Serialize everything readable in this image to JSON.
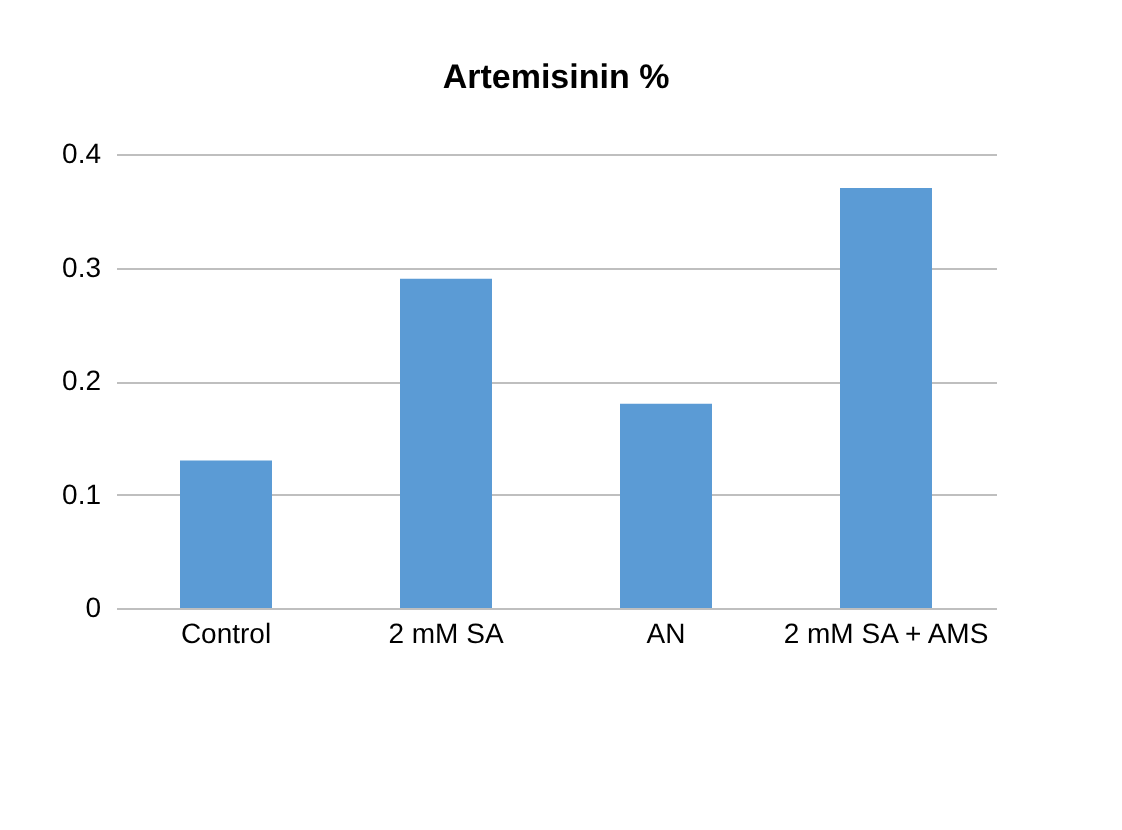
{
  "chart_data": {
    "type": "bar",
    "title": "Artemisinin %",
    "categories": [
      "Control",
      "2 mM SA",
      "AN",
      "2 mM SA + AMS"
    ],
    "values": [
      0.13,
      0.29,
      0.18,
      0.37
    ],
    "color": "#5b9bd5",
    "ylim": [
      0,
      0.4
    ],
    "yticks": [
      0,
      0.1,
      0.2,
      0.3,
      0.4
    ],
    "grid": "y"
  }
}
